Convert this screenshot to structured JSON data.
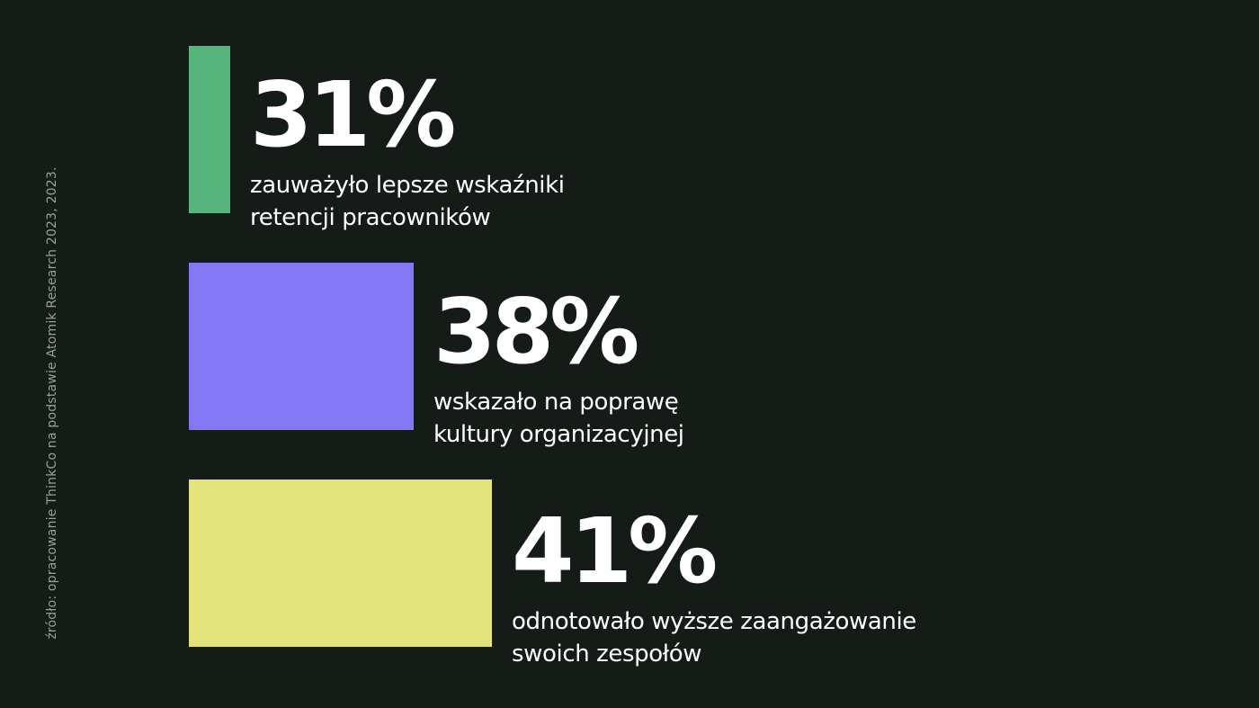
{
  "source_note": "źródło: opracowanie ThinkCo na podstawie Atomik Research 2023, 2023.",
  "chart_data": {
    "type": "bar",
    "categories": [
      "zauważyło lepsze wskaźniki retencji pracowników",
      "wskazało na poprawę kultury organizacyjnej",
      "odnotowało wyższe zaangażowanie swoich zespołów"
    ],
    "values": [
      31,
      38,
      41
    ],
    "unit": "%"
  },
  "stats": [
    {
      "value": 31,
      "value_label": "31%",
      "desc_line1": "zauważyło lepsze wskaźniki",
      "desc_line2": "retencji pracowników",
      "color": "#56b57a"
    },
    {
      "value": 38,
      "value_label": "38%",
      "desc_line1": "wskazało na poprawę",
      "desc_line2": "kultury organizacyjnej",
      "color": "#8478f7"
    },
    {
      "value": 41,
      "value_label": "41%",
      "desc_line1": "odnotowało wyższe zaangażowanie",
      "desc_line2": "swoich zespołów",
      "color": "#e3e37c"
    }
  ]
}
